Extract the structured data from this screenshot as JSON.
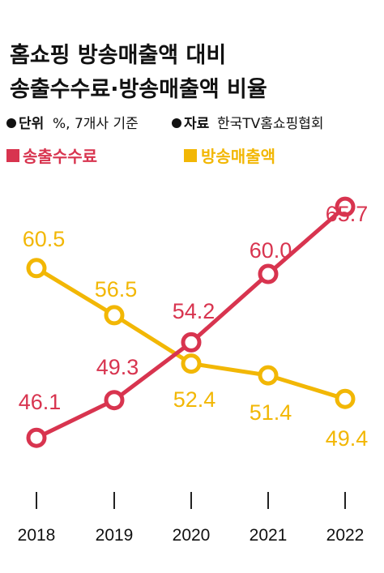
{
  "title_line1": "홈쇼핑 방송매출액 대비",
  "title_line2": "송출수수료·방송매출액 비율",
  "unit_label": "단위",
  "unit_value": "%, 7개사 기준",
  "source_label": "자료",
  "source_value": "한국TV홈쇼핑협회",
  "colors": {
    "red": "#d8344f",
    "yellow": "#f2b705"
  },
  "chart_data": {
    "type": "line",
    "categories": [
      "2018",
      "2019",
      "2020",
      "2021",
      "2022"
    ],
    "series": [
      {
        "name": "송출수수료",
        "values": [
          46.1,
          49.3,
          54.2,
          60.0,
          65.7
        ],
        "labels": [
          "46.1",
          "49.3",
          "54.2",
          "60.0",
          "65.7"
        ]
      },
      {
        "name": "방송매출액",
        "values": [
          60.5,
          56.5,
          52.4,
          51.4,
          49.4
        ],
        "labels": [
          "60.5",
          "56.5",
          "52.4",
          "51.4",
          "49.4"
        ]
      }
    ]
  }
}
